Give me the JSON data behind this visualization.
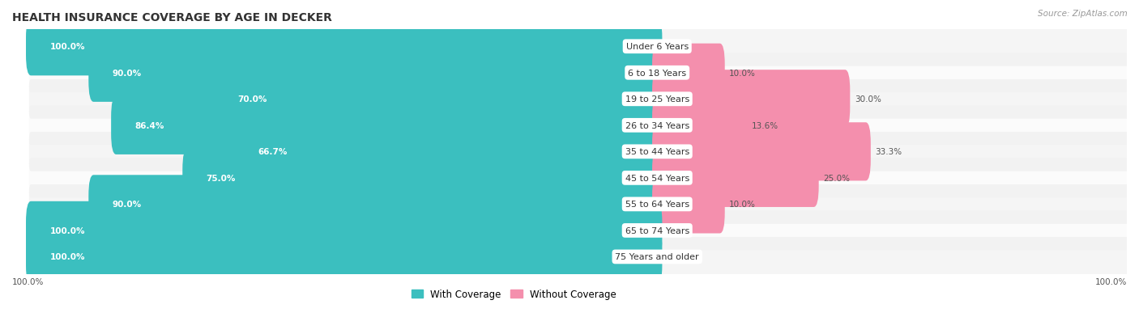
{
  "title": "HEALTH INSURANCE COVERAGE BY AGE IN DECKER",
  "source": "Source: ZipAtlas.com",
  "categories": [
    "Under 6 Years",
    "6 to 18 Years",
    "19 to 25 Years",
    "26 to 34 Years",
    "35 to 44 Years",
    "45 to 54 Years",
    "55 to 64 Years",
    "65 to 74 Years",
    "75 Years and older"
  ],
  "with_coverage": [
    100.0,
    90.0,
    70.0,
    86.4,
    66.7,
    75.0,
    90.0,
    100.0,
    100.0
  ],
  "without_coverage": [
    0.0,
    10.0,
    30.0,
    13.6,
    33.3,
    25.0,
    10.0,
    0.0,
    0.0
  ],
  "color_with": "#3BBFBF",
  "color_without": "#F48FAD",
  "bg_row": "#EAEAEA",
  "title_fontsize": 10,
  "label_fontsize": 8,
  "bar_value_fontsize": 7.5,
  "legend_fontsize": 8.5,
  "source_fontsize": 7.5
}
